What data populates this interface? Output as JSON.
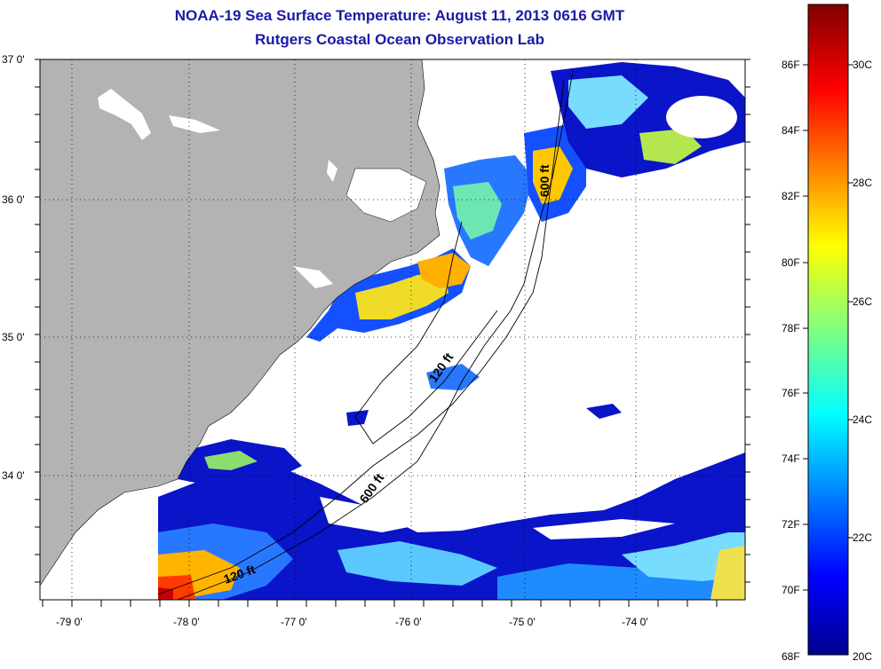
{
  "titles": {
    "line1": "NOAA-19 Sea Surface Temperature:  August 11, 2013 0616 GMT",
    "line2": "Rutgers Coastal Ocean Observation Lab"
  },
  "map": {
    "lat_labels": [
      "37 0'",
      "36 0'",
      "35 0'",
      "34 0'"
    ],
    "lon_labels": [
      "-79 0'",
      "-78 0'",
      "-77 0'",
      "-76 0'",
      "-75 0'",
      "-74 0'"
    ],
    "contour_labels": [
      "600 ft",
      "120 ft",
      "600 ft",
      "120 ft"
    ],
    "colors": {
      "land": "#b3b3b3",
      "ocean_nodata": "#ffffff",
      "contour": "#000000"
    }
  },
  "colorbar": {
    "f_labels": [
      "86F",
      "84F",
      "82F",
      "80F",
      "78F",
      "76F",
      "74F",
      "72F",
      "70F",
      "68F"
    ],
    "c_labels": [
      "30C",
      "28C",
      "26C",
      "24C",
      "22C",
      "20C"
    ],
    "colormap": "jet",
    "range_c": [
      20,
      31
    ]
  }
}
